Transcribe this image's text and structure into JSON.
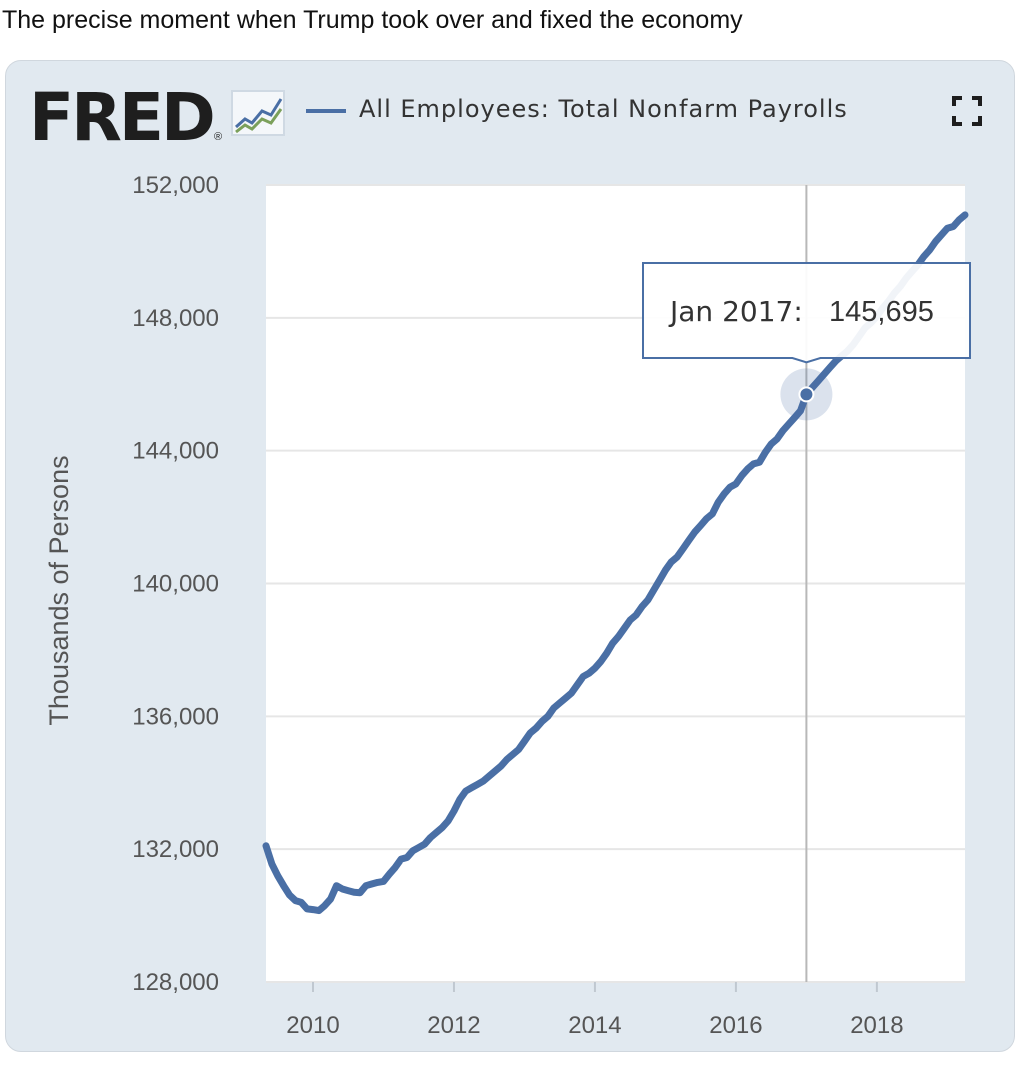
{
  "post": {
    "caption": "The precise moment when Trump took over and fixed the economy"
  },
  "widget": {
    "logo_text": "FRED",
    "logo_mark": "®",
    "logo_icon": "line-graph-icon",
    "fullscreen_icon": "fullscreen-icon",
    "colors": {
      "background": "#e1e9f0",
      "plot_area": "#ffffff",
      "series_line": "#4a6fa5",
      "gridline": "#e6e6e6"
    }
  },
  "chart_data": {
    "type": "line",
    "title": "",
    "xlabel": "",
    "ylabel": "Thousands of Persons",
    "x_ticks": [
      "2010",
      "2012",
      "2014",
      "2016",
      "2018"
    ],
    "y_ticks": [
      "128,000",
      "132,000",
      "136,000",
      "140,000",
      "144,000",
      "148,000",
      "152,000"
    ],
    "ylim": [
      128000,
      152000
    ],
    "xlim": [
      "2009-05",
      "2019-04"
    ],
    "grid": "horizontal",
    "legend_placement": "top",
    "series": [
      {
        "name": "All Employees: Total Nonfarm Payrolls",
        "color": "#4a6fa5",
        "x": [
          "2009-05",
          "2009-06",
          "2009-07",
          "2009-08",
          "2009-09",
          "2009-10",
          "2009-11",
          "2009-12",
          "2010-01",
          "2010-02",
          "2010-03",
          "2010-04",
          "2010-05",
          "2010-06",
          "2010-07",
          "2010-08",
          "2010-09",
          "2010-10",
          "2010-11",
          "2010-12",
          "2011-01",
          "2011-02",
          "2011-03",
          "2011-04",
          "2011-05",
          "2011-06",
          "2011-07",
          "2011-08",
          "2011-09",
          "2011-10",
          "2011-11",
          "2011-12",
          "2012-01",
          "2012-02",
          "2012-03",
          "2012-04",
          "2012-05",
          "2012-06",
          "2012-07",
          "2012-08",
          "2012-09",
          "2012-10",
          "2012-11",
          "2012-12",
          "2013-01",
          "2013-02",
          "2013-03",
          "2013-04",
          "2013-05",
          "2013-06",
          "2013-07",
          "2013-08",
          "2013-09",
          "2013-10",
          "2013-11",
          "2013-12",
          "2014-01",
          "2014-02",
          "2014-03",
          "2014-04",
          "2014-05",
          "2014-06",
          "2014-07",
          "2014-08",
          "2014-09",
          "2014-10",
          "2014-11",
          "2014-12",
          "2015-01",
          "2015-02",
          "2015-03",
          "2015-04",
          "2015-05",
          "2015-06",
          "2015-07",
          "2015-08",
          "2015-09",
          "2015-10",
          "2015-11",
          "2015-12",
          "2016-01",
          "2016-02",
          "2016-03",
          "2016-04",
          "2016-05",
          "2016-06",
          "2016-07",
          "2016-08",
          "2016-09",
          "2016-10",
          "2016-11",
          "2016-12",
          "2017-01",
          "2017-02",
          "2017-03",
          "2017-04",
          "2017-05",
          "2017-06",
          "2017-07",
          "2017-08",
          "2017-09",
          "2017-10",
          "2017-11",
          "2017-12",
          "2018-01",
          "2018-02",
          "2018-03",
          "2018-04",
          "2018-05",
          "2018-06",
          "2018-07",
          "2018-08",
          "2018-09",
          "2018-10",
          "2018-11",
          "2018-12",
          "2019-01",
          "2019-02",
          "2019-03",
          "2019-04"
        ],
        "y": [
          132100,
          131550,
          131200,
          130900,
          130620,
          130450,
          130400,
          130200,
          130180,
          130150,
          130300,
          130500,
          130900,
          130800,
          130750,
          130700,
          130690,
          130900,
          130950,
          131000,
          131030,
          131250,
          131450,
          131700,
          131750,
          131950,
          132050,
          132150,
          132350,
          132500,
          132650,
          132850,
          133150,
          133500,
          133750,
          133850,
          133950,
          134050,
          134200,
          134350,
          134500,
          134700,
          134850,
          135000,
          135250,
          135500,
          135650,
          135850,
          136000,
          136250,
          136400,
          136550,
          136700,
          136950,
          137200,
          137300,
          137450,
          137650,
          137900,
          138200,
          138400,
          138650,
          138900,
          139050,
          139300,
          139500,
          139800,
          140100,
          140400,
          140650,
          140800,
          141050,
          141300,
          141550,
          141750,
          141950,
          142100,
          142450,
          142700,
          142900,
          143000,
          143250,
          143450,
          143600,
          143650,
          143950,
          144200,
          144350,
          144600,
          144800,
          145000,
          145200,
          145695,
          145900,
          146100,
          146300,
          146500,
          146700,
          146850,
          147000,
          147200,
          147450,
          147700,
          147850,
          148050,
          148300,
          148500,
          148750,
          148950,
          149200,
          149400,
          149600,
          149850,
          150050,
          150300,
          150500,
          150700,
          150750,
          150950,
          151100
        ]
      }
    ],
    "highlight": {
      "x": "2017-01",
      "label": "Jan 2017:",
      "value": 145695,
      "value_text": "145,695"
    }
  }
}
